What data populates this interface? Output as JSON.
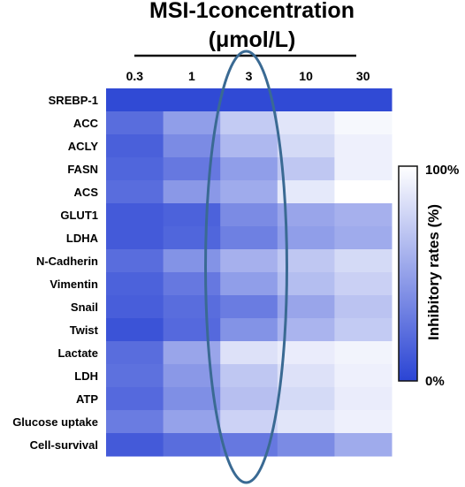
{
  "chart_data": {
    "type": "heatmap",
    "title": "MSI-1concentration",
    "subtitle": "(μmol/L)",
    "columns": [
      "0.3",
      "1",
      "3",
      "10",
      "30"
    ],
    "rows": [
      "SREBP-1",
      "ACC",
      "ACLY",
      "FASN",
      "ACS",
      "GLUT1",
      "LDHA",
      "N-Cadherin",
      "Vimentin",
      "Snail",
      "Twist",
      "Lactate",
      "LDH",
      "ATP",
      "Glucose uptake",
      "Cell-survival"
    ],
    "values": [
      [
        3,
        3,
        3,
        3,
        3
      ],
      [
        22,
        48,
        72,
        86,
        96
      ],
      [
        15,
        38,
        62,
        80,
        92
      ],
      [
        18,
        28,
        48,
        70,
        92
      ],
      [
        22,
        45,
        55,
        88,
        100
      ],
      [
        12,
        16,
        38,
        52,
        58
      ],
      [
        12,
        18,
        32,
        48,
        55
      ],
      [
        22,
        42,
        58,
        70,
        80
      ],
      [
        16,
        28,
        48,
        65,
        75
      ],
      [
        14,
        22,
        30,
        52,
        68
      ],
      [
        8,
        20,
        42,
        60,
        72
      ],
      [
        22,
        52,
        84,
        90,
        94
      ],
      [
        24,
        45,
        70,
        84,
        92
      ],
      [
        20,
        40,
        66,
        80,
        90
      ],
      [
        30,
        50,
        76,
        86,
        92
      ],
      [
        12,
        22,
        28,
        38,
        55
      ]
    ],
    "value_unit": "%",
    "color_scale": {
      "min": 0,
      "max": 100,
      "min_color": "#2a44d4",
      "max_color": "#ffffff",
      "min_label": "0%",
      "max_label": "100%",
      "title": "Inhibitory rates (%)"
    },
    "highlight_column": "3",
    "highlight_color": "#3a6a93"
  }
}
